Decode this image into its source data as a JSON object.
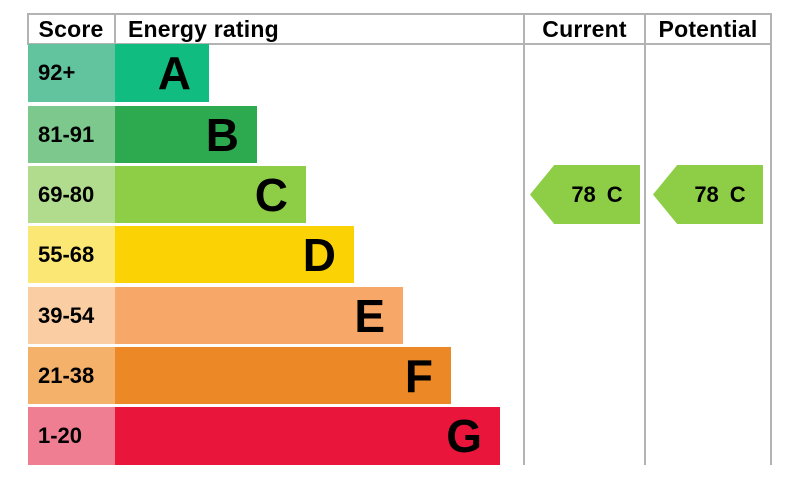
{
  "header": {
    "score": "Score",
    "energy_rating": "Energy rating",
    "current": "Current",
    "potential": "Potential"
  },
  "bands": [
    {
      "score_range": "92+",
      "letter": "A",
      "bar_color": "#10bc7f",
      "tint_color": "#61c49e"
    },
    {
      "score_range": "81-91",
      "letter": "B",
      "bar_color": "#2da94f",
      "tint_color": "#7dc98d"
    },
    {
      "score_range": "69-80",
      "letter": "C",
      "bar_color": "#8dce46",
      "tint_color": "#b1dc8d"
    },
    {
      "score_range": "55-68",
      "letter": "D",
      "bar_color": "#fbd305",
      "tint_color": "#fbe774"
    },
    {
      "score_range": "39-54",
      "letter": "E",
      "bar_color": "#f7a767",
      "tint_color": "#facea2"
    },
    {
      "score_range": "21-38",
      "letter": "F",
      "bar_color": "#ec8926",
      "tint_color": "#f3b169"
    },
    {
      "score_range": "1-20",
      "letter": "G",
      "bar_color": "#e9153b",
      "tint_color": "#f07e92"
    }
  ],
  "current_rating": {
    "value": "78",
    "band": "C",
    "band_index": 2,
    "arrow_color": "#8dce46"
  },
  "potential_rating": {
    "value": "78",
    "band": "C",
    "band_index": 2,
    "arrow_color": "#8dce46"
  },
  "border_color": "#b3b3b3",
  "chart_data": {
    "type": "bar",
    "title": "Energy rating",
    "columns": [
      "Score",
      "Energy rating",
      "Current",
      "Potential"
    ],
    "categories": [
      "A",
      "B",
      "C",
      "D",
      "E",
      "F",
      "G"
    ],
    "score_ranges": [
      "92+",
      "81-91",
      "69-80",
      "55-68",
      "39-54",
      "21-38",
      "1-20"
    ],
    "band_colors": [
      "#10bc7f",
      "#2da94f",
      "#8dce46",
      "#fbd305",
      "#f7a767",
      "#ec8926",
      "#e9153b"
    ],
    "current": {
      "score": 78,
      "band": "C"
    },
    "potential": {
      "score": 78,
      "band": "C"
    },
    "legend_position": "none",
    "grid": false
  }
}
